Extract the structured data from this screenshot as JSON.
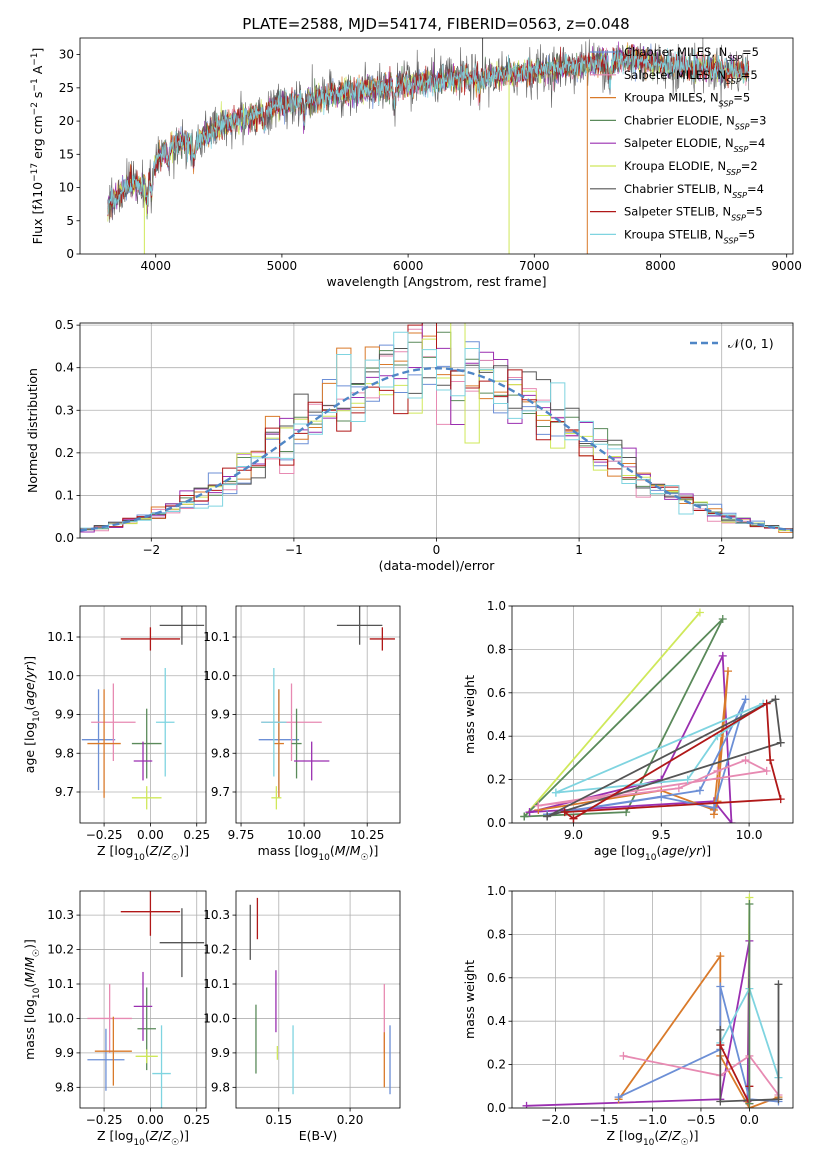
{
  "title": "PLATE=2588, MJD=54174, FIBERID=0563, z=0.048",
  "colors": {
    "Chabrier MILES": "#6c8fd6",
    "Salpeter MILES": "#e78ab2",
    "Kroupa MILES": "#d97a2a",
    "Chabrier ELODIE": "#5a8a5a",
    "Salpeter ELODIE": "#9a2fb0",
    "Kroupa ELODIE": "#cfe85a",
    "Chabrier STELIB": "#555555",
    "Salpeter STELIB": "#b01818",
    "Kroupa STELIB": "#7fd4e0"
  },
  "chart_data": [
    {
      "type": "line",
      "title": "PLATE=2588, MJD=54174, FIBERID=0563, z=0.048",
      "xlabel": "wavelength [Angstrom, rest frame]",
      "ylabel_html": "Flux [f<tspan font-style='italic'>λ</tspan>10<tspan baseline-shift='super' font-size='9'>−17</tspan> erg cm<tspan baseline-shift='super' font-size='9'>−2</tspan> s<tspan baseline-shift='super' font-size='9'>−1</tspan> A<tspan baseline-shift='super' font-size='9'>−1</tspan>]",
      "xlim": [
        3400,
        9050
      ],
      "ylim": [
        0,
        32.5
      ],
      "xticks": [
        4000,
        5000,
        6000,
        7000,
        8000,
        9000
      ],
      "yticks": [
        0,
        5,
        10,
        15,
        20,
        25,
        30
      ],
      "legend": [
        {
          "name": "Chabrier MILES",
          "nssp": "5"
        },
        {
          "name": "Salpeter MILES",
          "nssp": "5"
        },
        {
          "name": "Kroupa MILES",
          "nssp": "5"
        },
        {
          "name": "Chabrier ELODIE",
          "nssp": "3"
        },
        {
          "name": "Salpeter ELODIE",
          "nssp": "4"
        },
        {
          "name": "Kroupa ELODIE",
          "nssp": "2"
        },
        {
          "name": "Chabrier STELIB",
          "nssp": "4"
        },
        {
          "name": "Salpeter STELIB",
          "nssp": "5"
        },
        {
          "name": "Kroupa STELIB",
          "nssp": "5"
        }
      ],
      "legend_placement": "right",
      "continuum_x": [
        3620,
        3700,
        3800,
        3900,
        4000,
        4100,
        4200,
        4300,
        4400,
        4500,
        4600,
        4800,
        5000,
        5200,
        5400,
        5600,
        5800,
        6000,
        6200,
        6400,
        6600,
        6800,
        7000,
        7200,
        7400,
        7600,
        7800,
        8000,
        8200,
        8400,
        8600,
        8700
      ],
      "continuum_y": [
        7,
        9,
        11,
        10,
        14,
        16,
        17,
        16,
        18,
        19,
        20,
        21,
        22.5,
        23,
        24,
        24.5,
        25,
        25.5,
        26,
        26.5,
        26.5,
        27,
        27.5,
        28,
        28.5,
        29,
        29.5,
        28.5,
        28,
        28,
        27.5,
        27.5
      ],
      "noise_amplitude": 1.6,
      "spikes": [
        {
          "x": 6590,
          "y": 32.5
        },
        {
          "x": 6800,
          "y": 0
        },
        {
          "x": 3910,
          "y": 0
        },
        {
          "x": 7420,
          "y": 0
        }
      ]
    },
    {
      "type": "step",
      "xlabel": "(data-model)/error",
      "ylabel": "Normed distribution",
      "xlim": [
        -2.5,
        2.5
      ],
      "ylim": [
        0,
        0.505
      ],
      "xticks": [
        -2,
        -1,
        0,
        1,
        2
      ],
      "yticks": [
        0.0,
        0.1,
        0.2,
        0.3,
        0.4,
        0.5
      ],
      "reference_curve": "N(0,1)",
      "legend_label": "𝒩(0, 1)",
      "bins": 50
    },
    {
      "type": "scatter",
      "xlabel": "Z [log10(Z/Z⊙)]",
      "ylabel": "age [log10(age/yr)]",
      "xlim": [
        -0.38,
        0.3
      ],
      "ylim": [
        9.62,
        10.18
      ],
      "xticks": [
        -0.25,
        0.0,
        0.25
      ],
      "yticks": [
        9.7,
        9.8,
        9.9,
        10.0,
        10.1
      ],
      "points": [
        {
          "series": "Chabrier MILES",
          "x": -0.28,
          "y": 9.835,
          "xerr": 0.09,
          "yerr": 0.13
        },
        {
          "series": "Salpeter MILES",
          "x": -0.2,
          "y": 9.88,
          "xerr": 0.12,
          "yerr": 0.1
        },
        {
          "series": "Kroupa MILES",
          "x": -0.25,
          "y": 9.825,
          "xerr": 0.09,
          "yerr": 0.14
        },
        {
          "series": "Chabrier ELODIE",
          "x": -0.02,
          "y": 9.825,
          "xerr": 0.08,
          "yerr": 0.09
        },
        {
          "series": "Salpeter ELODIE",
          "x": -0.04,
          "y": 9.78,
          "xerr": 0.05,
          "yerr": 0.05
        },
        {
          "series": "Kroupa ELODIE",
          "x": -0.02,
          "y": 9.685,
          "xerr": 0.08,
          "yerr": 0.03
        },
        {
          "series": "Chabrier STELIB",
          "x": 0.17,
          "y": 10.13,
          "xerr": 0.12,
          "yerr": 0.05
        },
        {
          "series": "Salpeter STELIB",
          "x": 0.0,
          "y": 10.095,
          "xerr": 0.16,
          "yerr": 0.03
        },
        {
          "series": "Kroupa STELIB",
          "x": 0.08,
          "y": 9.88,
          "xerr": 0.05,
          "yerr": 0.14
        }
      ]
    },
    {
      "type": "scatter",
      "xlabel": "mass [log10(M/M⊙)]",
      "ylabel": "",
      "xlim": [
        9.73,
        10.38
      ],
      "ylim": [
        9.62,
        10.18
      ],
      "xticks": [
        9.75,
        10.0,
        10.25
      ],
      "yticks": [
        9.7,
        9.8,
        9.9,
        10.0,
        10.1
      ],
      "points": [
        {
          "series": "Chabrier MILES",
          "x": 9.9,
          "y": 9.835,
          "xerr": 0.08,
          "yerr": 0.13
        },
        {
          "series": "Salpeter MILES",
          "x": 9.95,
          "y": 9.88,
          "xerr": 0.12,
          "yerr": 0.1
        },
        {
          "series": "Kroupa MILES",
          "x": 9.9,
          "y": 9.825,
          "xerr": 0.02,
          "yerr": 0.14
        },
        {
          "series": "Chabrier ELODIE",
          "x": 9.97,
          "y": 9.825,
          "xerr": 0.02,
          "yerr": 0.09
        },
        {
          "series": "Salpeter ELODIE",
          "x": 10.03,
          "y": 9.78,
          "xerr": 0.07,
          "yerr": 0.05
        },
        {
          "series": "Kroupa ELODIE",
          "x": 9.89,
          "y": 9.685,
          "xerr": 0.02,
          "yerr": 0.03
        },
        {
          "series": "Chabrier STELIB",
          "x": 10.22,
          "y": 10.13,
          "xerr": 0.09,
          "yerr": 0.05
        },
        {
          "series": "Salpeter STELIB",
          "x": 10.31,
          "y": 10.095,
          "xerr": 0.05,
          "yerr": 0.03
        },
        {
          "series": "Kroupa STELIB",
          "x": 9.88,
          "y": 9.88,
          "xerr": 0.05,
          "yerr": 0.14
        }
      ]
    },
    {
      "type": "line",
      "xlabel": "age [log10(age/yr)]",
      "ylabel": "mass weight",
      "xlim": [
        8.65,
        10.25
      ],
      "ylim": [
        0,
        1.0
      ],
      "xticks": [
        9.0,
        9.5,
        10.0
      ],
      "yticks": [
        0.0,
        0.2,
        0.4,
        0.6,
        0.8,
        1.0
      ],
      "series": [
        {
          "name": "Kroupa ELODIE",
          "x": [
            8.72,
            9.72
          ],
          "y": [
            0.03,
            0.97
          ]
        },
        {
          "name": "Chabrier ELODIE",
          "x": [
            8.72,
            9.3,
            9.85,
            8.72
          ],
          "y": [
            0.03,
            0.05,
            0.94,
            0.03
          ]
        },
        {
          "name": "Salpeter ELODIE",
          "x": [
            8.75,
            9.5,
            9.85,
            9.9,
            9.8,
            8.75
          ],
          "y": [
            0.05,
            0.2,
            0.77,
            0.0,
            0.1,
            0.05
          ]
        },
        {
          "name": "Kroupa MILES",
          "x": [
            8.8,
            9.5,
            9.8,
            9.88,
            9.82,
            9.8
          ],
          "y": [
            0.06,
            0.15,
            0.06,
            0.7,
            0.1,
            0.04
          ]
        },
        {
          "name": "Chabrier MILES",
          "x": [
            8.85,
            9.5,
            9.8,
            9.98,
            9.72,
            8.85
          ],
          "y": [
            0.04,
            0.12,
            0.07,
            0.57,
            0.15,
            0.04
          ]
        },
        {
          "name": "Salpeter MILES",
          "x": [
            8.8,
            9.6,
            9.82,
            9.98,
            10.1,
            8.8
          ],
          "y": [
            0.08,
            0.16,
            0.24,
            0.29,
            0.24,
            0.08
          ]
        },
        {
          "name": "Kroupa STELIB",
          "x": [
            8.9,
            9.65,
            9.82,
            10.08,
            8.9
          ],
          "y": [
            0.14,
            0.2,
            0.4,
            0.55,
            0.14
          ]
        },
        {
          "name": "Chabrier STELIB",
          "x": [
            8.85,
            10.15,
            10.18,
            8.85
          ],
          "y": [
            0.03,
            0.57,
            0.37,
            0.03
          ]
        },
        {
          "name": "Salpeter STELIB",
          "x": [
            9.0,
            10.1,
            10.12,
            10.18,
            8.95,
            9.0
          ],
          "y": [
            0.02,
            0.55,
            0.29,
            0.11,
            0.05,
            0.02
          ]
        }
      ]
    },
    {
      "type": "scatter",
      "xlabel": "Z [log10(Z/Z⊙)]",
      "ylabel": "mass [log10(M/M⊙)]",
      "xlim": [
        -0.38,
        0.3
      ],
      "ylim": [
        9.74,
        10.37
      ],
      "xticks": [
        -0.25,
        0.0,
        0.25
      ],
      "yticks": [
        9.8,
        9.9,
        10.0,
        10.1,
        10.2,
        10.3
      ],
      "points": [
        {
          "series": "Chabrier MILES",
          "x": -0.24,
          "y": 9.88,
          "xerr": 0.1,
          "yerr": 0.09
        },
        {
          "series": "Salpeter MILES",
          "x": -0.22,
          "y": 10.0,
          "xerr": 0.12,
          "yerr": 0.1
        },
        {
          "series": "Kroupa MILES",
          "x": -0.2,
          "y": 9.905,
          "xerr": 0.1,
          "yerr": 0.1
        },
        {
          "series": "Chabrier ELODIE",
          "x": -0.02,
          "y": 9.97,
          "xerr": 0.05,
          "yerr": 0.12
        },
        {
          "series": "Salpeter ELODIE",
          "x": -0.04,
          "y": 10.035,
          "xerr": 0.05,
          "yerr": 0.1
        },
        {
          "series": "Kroupa ELODIE",
          "x": -0.02,
          "y": 9.89,
          "xerr": 0.06,
          "yerr": 0.02
        },
        {
          "series": "Chabrier STELIB",
          "x": 0.17,
          "y": 10.22,
          "xerr": 0.12,
          "yerr": 0.1
        },
        {
          "series": "Salpeter STELIB",
          "x": 0.0,
          "y": 10.31,
          "xerr": 0.16,
          "yerr": 0.07
        },
        {
          "series": "Kroupa STELIB",
          "x": 0.06,
          "y": 9.84,
          "xerr": 0.05,
          "yerr": 0.14
        }
      ]
    },
    {
      "type": "scatter",
      "xlabel": "E(B-V)",
      "ylabel": "",
      "xlim": [
        0.12,
        0.235
      ],
      "ylim": [
        9.74,
        10.37
      ],
      "xticks": [
        0.15,
        0.2
      ],
      "yticks": [
        9.8,
        9.9,
        10.0,
        10.1,
        10.2,
        10.3
      ],
      "points": [
        {
          "series": "Chabrier MILES",
          "x": 0.228,
          "y": 9.88,
          "xerr": 0,
          "yerr": 0.1
        },
        {
          "series": "Salpeter MILES",
          "x": 0.224,
          "y": 10.0,
          "xerr": 0,
          "yerr": 0.1
        },
        {
          "series": "Kroupa MILES",
          "x": 0.224,
          "y": 9.88,
          "xerr": 0,
          "yerr": 0.08
        },
        {
          "series": "Chabrier ELODIE",
          "x": 0.134,
          "y": 9.94,
          "xerr": 0,
          "yerr": 0.1
        },
        {
          "series": "Salpeter ELODIE",
          "x": 0.148,
          "y": 10.05,
          "xerr": 0,
          "yerr": 0.09
        },
        {
          "series": "Kroupa ELODIE",
          "x": 0.149,
          "y": 9.9,
          "xerr": 0,
          "yerr": 0.02
        },
        {
          "series": "Chabrier STELIB",
          "x": 0.13,
          "y": 10.25,
          "xerr": 0,
          "yerr": 0.08
        },
        {
          "series": "Salpeter STELIB",
          "x": 0.135,
          "y": 10.29,
          "xerr": 0,
          "yerr": 0.06
        },
        {
          "series": "Kroupa STELIB",
          "x": 0.16,
          "y": 9.88,
          "xerr": 0,
          "yerr": 0.1
        }
      ]
    },
    {
      "type": "line",
      "xlabel": "Z [log10(Z/Z⊙)]",
      "ylabel": "mass weight",
      "xlim": [
        -2.45,
        0.45
      ],
      "ylim": [
        0,
        1.0
      ],
      "xticks": [
        -2.0,
        -1.5,
        -1.0,
        -0.5,
        0.0
      ],
      "yticks": [
        0.0,
        0.2,
        0.4,
        0.6,
        0.8,
        1.0
      ],
      "series": [
        {
          "name": "Kroupa ELODIE",
          "x": [
            -0.02,
            0.0,
            -0.02
          ],
          "y": [
            0.03,
            0.97,
            0.03
          ]
        },
        {
          "name": "Salpeter ELODIE",
          "x": [
            -2.3,
            -0.3,
            0.0,
            -0.02
          ],
          "y": [
            0.01,
            0.04,
            0.77,
            0.03
          ]
        },
        {
          "name": "Kroupa MILES",
          "x": [
            -1.35,
            -0.3,
            -0.3,
            0.0,
            0.3
          ],
          "y": [
            0.04,
            0.7,
            0.24,
            0.0,
            0.05
          ]
        },
        {
          "name": "Chabrier MILES",
          "x": [
            -1.35,
            -0.3,
            -0.3,
            0.0,
            0.3
          ],
          "y": [
            0.05,
            0.27,
            0.56,
            0.04,
            0.03
          ]
        },
        {
          "name": "Salpeter MILES",
          "x": [
            -1.3,
            -0.3,
            0.0,
            0.3
          ],
          "y": [
            0.24,
            0.15,
            0.24,
            0.06
          ]
        },
        {
          "name": "Kroupa STELIB",
          "x": [
            -0.3,
            0.0,
            0.3
          ],
          "y": [
            0.3,
            0.55,
            0.14
          ]
        },
        {
          "name": "Chabrier STELIB",
          "x": [
            -0.3,
            -0.3,
            0.3,
            0.3
          ],
          "y": [
            0.36,
            0.03,
            0.04,
            0.57
          ]
        },
        {
          "name": "Salpeter STELIB",
          "x": [
            -0.3,
            0.0,
            0.0
          ],
          "y": [
            0.29,
            0.02,
            0.1
          ]
        },
        {
          "name": "Chabrier ELODIE",
          "x": [
            0.0,
            0.0
          ],
          "y": [
            0.94,
            0.02
          ]
        }
      ]
    }
  ]
}
